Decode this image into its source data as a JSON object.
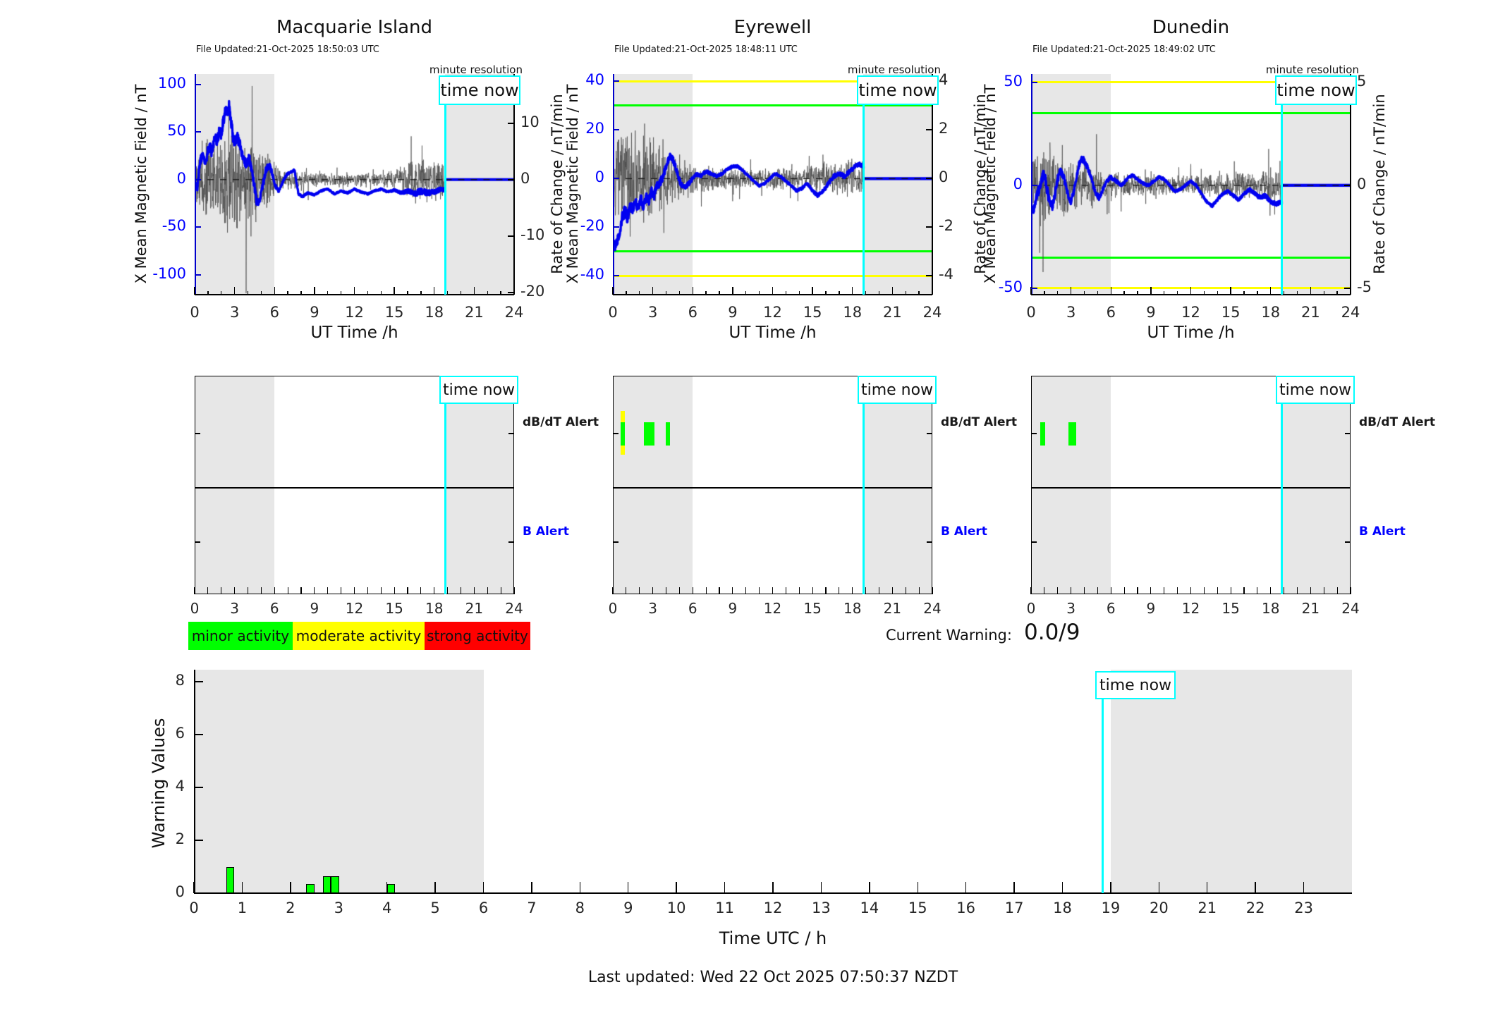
{
  "figure": {
    "time_now_label": "time now",
    "minute_resolution_label": "minute resolution",
    "current_warning_label": "Current Warning:",
    "current_warning_value": "0.0/9",
    "last_updated": "Last updated: Wed 22 Oct 2025 07:50:37 NZDT",
    "colors": {
      "field_line": "#0000F0",
      "noise_line": "#464646",
      "threshold_yellow": "#FFFF00",
      "threshold_green": "#00FF00",
      "time_now_cyan": "#00FFFF",
      "shading_gray": "#E7E7E7",
      "alert_green": "#00FF00",
      "alert_yellow": "#FFFF00",
      "axis_blue": "#0000FF"
    },
    "legend": [
      {
        "label": "minor activity",
        "color": "#00FF00"
      },
      {
        "label": "moderate activity",
        "color": "#FFFF00"
      },
      {
        "label": "strong activity",
        "color": "#FF0000"
      }
    ]
  },
  "chart_data": {
    "time_now_hours": 18.83,
    "stations": [
      {
        "title": "Macquarie Island",
        "file_updated": "File Updated:21-Oct-2025 18:50:03 UTC",
        "type": "line",
        "x_axis": {
          "label": "UT Time /h",
          "ticks": [
            0,
            3,
            6,
            9,
            12,
            15,
            18,
            21,
            24
          ],
          "range": [
            0,
            24
          ]
        },
        "left_axis": {
          "label": "X Mean Magnetic Field / nT",
          "ticks": [
            100,
            50,
            0,
            -50,
            -100
          ],
          "range": [
            -121,
            111
          ]
        },
        "right_axis": {
          "label": "Rate of Change / nT/min",
          "ticks": [
            10,
            0,
            -10,
            -20
          ],
          "range": [
            -20.4,
            18.75
          ]
        },
        "thresholds": {
          "yellow": [],
          "green": []
        },
        "shaded_hours": [
          [
            0,
            6
          ],
          [
            18.83,
            24
          ]
        ],
        "flat_after_now": 0,
        "field_line": {
          "x": [
            0,
            0.2,
            0.4,
            0.6,
            0.8,
            1.0,
            1.15,
            1.3,
            1.5,
            1.7,
            1.85,
            2.0,
            2.15,
            2.3,
            2.45,
            2.6,
            2.75,
            2.9,
            3.05,
            3.2,
            3.35,
            3.5,
            3.7,
            3.9,
            4.1,
            4.3,
            4.5,
            4.65,
            4.8,
            5.0,
            5.2,
            5.4,
            5.6,
            5.8,
            6.0,
            6.3,
            6.6,
            6.9,
            7.2,
            7.5,
            7.8,
            8.1,
            8.5,
            9.0,
            9.5,
            10.0,
            10.5,
            11.0,
            11.5,
            12.0,
            12.5,
            13.0,
            13.5,
            14.0,
            14.5,
            15.0,
            15.5,
            16.0,
            16.5,
            17.0,
            17.5,
            18.0,
            18.4,
            18.83
          ],
          "y": [
            -5,
            -10,
            20,
            25,
            18,
            30,
            35,
            28,
            45,
            40,
            52,
            48,
            60,
            75,
            70,
            78,
            60,
            42,
            38,
            44,
            40,
            30,
            20,
            15,
            22,
            10,
            -8,
            -22,
            -25,
            -15,
            0,
            12,
            15,
            8,
            -5,
            -12,
            -3,
            5,
            8,
            10,
            -15,
            -18,
            -14,
            -16,
            -12,
            -10,
            -15,
            -12,
            -14,
            -10,
            -13,
            -15,
            -12,
            -10,
            -13,
            -11,
            -14,
            -12,
            -15,
            -12,
            -14,
            -13,
            -11,
            -10
          ]
        },
        "noise_envelope": {
          "x": [
            0,
            0.5,
            1,
            1.5,
            2,
            2.5,
            3,
            3.5,
            4,
            4.5,
            5,
            5.5,
            6,
            6.5,
            7,
            8,
            9,
            11,
            13,
            15,
            15.5,
            16,
            16.5,
            17,
            17.5,
            18,
            18.83
          ],
          "amp": [
            6,
            8,
            9,
            8,
            10,
            12,
            11,
            9,
            9,
            8,
            7,
            6,
            3.5,
            2.5,
            2,
            1.8,
            1.5,
            1.5,
            1.5,
            1.8,
            2.5,
            4,
            5,
            5.5,
            5,
            4.5,
            4
          ]
        },
        "alerts": {
          "dbdt_label": "dB/dT Alert",
          "b_label": "B Alert",
          "bars": []
        }
      },
      {
        "title": "Eyrewell",
        "file_updated": "File Updated:21-Oct-2025 18:48:11 UTC",
        "type": "line",
        "x_axis": {
          "label": "UT Time /h",
          "ticks": [
            0,
            3,
            6,
            9,
            12,
            15,
            18,
            21,
            24
          ],
          "range": [
            0,
            24
          ]
        },
        "left_axis": {
          "label": "X Mean Magnetic Field / nT",
          "ticks": [
            40,
            20,
            0,
            -20,
            -40
          ],
          "range": [
            -47.7,
            43.0
          ]
        },
        "right_axis": {
          "label": "Rate of Change / nT/min",
          "ticks": [
            4,
            2,
            0,
            -2,
            -4
          ],
          "range": [
            -4.77,
            4.3
          ]
        },
        "thresholds": {
          "yellow": [
            40,
            -40
          ],
          "green": [
            30,
            -30
          ]
        },
        "shaded_hours": [
          [
            0,
            6
          ],
          [
            18.83,
            24
          ]
        ],
        "flat_after_now": 0,
        "field_line": {
          "x": [
            0,
            0.15,
            0.3,
            0.5,
            0.7,
            0.9,
            1.1,
            1.3,
            1.5,
            1.7,
            1.9,
            2.1,
            2.3,
            2.5,
            2.7,
            2.9,
            3.1,
            3.3,
            3.5,
            3.7,
            3.9,
            4.1,
            4.3,
            4.5,
            4.7,
            4.9,
            5.1,
            5.4,
            5.7,
            6.0,
            6.3,
            6.6,
            7.0,
            7.4,
            7.8,
            8.2,
            8.6,
            9.0,
            9.4,
            9.8,
            10.2,
            10.6,
            11.0,
            11.4,
            11.8,
            12.2,
            12.6,
            13.0,
            13.4,
            13.8,
            14.2,
            14.6,
            15.0,
            15.4,
            15.8,
            16.2,
            16.6,
            17.0,
            17.4,
            17.8,
            18.2,
            18.5,
            18.83
          ],
          "y": [
            -24,
            -28,
            -26,
            -22,
            -16,
            -13,
            -16,
            -11,
            -13,
            -9,
            -12,
            -8,
            -11,
            -7,
            -9,
            -5,
            -7,
            -3,
            -2,
            0,
            3,
            7,
            9,
            8,
            5,
            1,
            -2,
            -4,
            -2,
            0,
            2,
            1,
            3,
            2,
            1,
            2,
            4,
            5,
            5,
            3,
            1,
            -1,
            -3,
            -2,
            0,
            2,
            1,
            -1,
            -3,
            -5,
            -4,
            -2,
            -5,
            -7,
            -5,
            -2,
            1,
            2,
            1,
            3,
            5,
            6,
            5
          ]
        },
        "noise_envelope": {
          "x": [
            0,
            0.5,
            1,
            1.5,
            2,
            2.5,
            3,
            3.5,
            4,
            4.5,
            5,
            5.5,
            6,
            7,
            8,
            9,
            11,
            13,
            15,
            16,
            17,
            18,
            18.83
          ],
          "amp": [
            1.8,
            2.3,
            2.5,
            2.2,
            2.4,
            2.0,
            1.8,
            1.6,
            1.5,
            1.3,
            1.2,
            1.0,
            0.8,
            0.6,
            0.55,
            0.5,
            0.45,
            0.5,
            0.6,
            0.8,
            0.85,
            0.8,
            0.8
          ]
        },
        "alerts": {
          "dbdt_label": "dB/dT Alert",
          "b_label": "B Alert",
          "bars": [
            {
              "row": "dbdt",
              "start": 0.58,
              "end": 0.92,
              "color": "#FFFF00",
              "tall": true
            },
            {
              "row": "dbdt",
              "start": 0.58,
              "end": 0.92,
              "color": "#00FF00",
              "tall": false
            },
            {
              "row": "dbdt",
              "start": 2.35,
              "end": 3.15,
              "color": "#00FF00",
              "tall": false
            },
            {
              "row": "dbdt",
              "start": 3.95,
              "end": 4.3,
              "color": "#00FF00",
              "tall": false
            }
          ]
        }
      },
      {
        "title": "Dunedin",
        "file_updated": "File Updated:21-Oct-2025 18:49:02 UTC",
        "type": "line",
        "x_axis": {
          "label": "UT Time /h",
          "ticks": [
            0,
            3,
            6,
            9,
            12,
            15,
            18,
            21,
            24
          ],
          "range": [
            0,
            24
          ]
        },
        "left_axis": {
          "label": "X Mean Magnetic Field / nT",
          "ticks": [
            50,
            0,
            -50
          ],
          "range": [
            -53.1,
            54.1
          ]
        },
        "right_axis": {
          "label": "Rate of Change / nT/min",
          "ticks": [
            5,
            0,
            -5
          ],
          "range": [
            -5.31,
            5.41
          ]
        },
        "thresholds": {
          "yellow": [
            50,
            -50
          ],
          "green": [
            35,
            -35
          ]
        },
        "shaded_hours": [
          [
            0,
            6
          ],
          [
            18.83,
            24
          ]
        ],
        "flat_after_now": 0,
        "field_line": {
          "x": [
            0,
            0.2,
            0.4,
            0.6,
            0.8,
            1.0,
            1.2,
            1.4,
            1.6,
            1.8,
            2.0,
            2.2,
            2.4,
            2.6,
            2.8,
            3.0,
            3.2,
            3.4,
            3.6,
            3.8,
            4.0,
            4.2,
            4.5,
            4.8,
            5.1,
            5.4,
            5.7,
            6.0,
            6.4,
            6.8,
            7.2,
            7.6,
            8.0,
            8.4,
            8.8,
            9.2,
            9.6,
            10.0,
            10.4,
            10.8,
            11.2,
            11.6,
            12.0,
            12.4,
            12.8,
            13.2,
            13.6,
            14.0,
            14.4,
            14.8,
            15.2,
            15.6,
            16.0,
            16.4,
            16.8,
            17.2,
            17.6,
            18.0,
            18.4,
            18.83
          ],
          "y": [
            -10,
            -12,
            -6,
            -2,
            3,
            6,
            -2,
            -8,
            -10,
            -4,
            3,
            7,
            5,
            0,
            -5,
            -8,
            -3,
            4,
            10,
            13,
            12,
            9,
            4,
            -3,
            -6,
            -2,
            2,
            4,
            2,
            0,
            3,
            5,
            3,
            1,
            0,
            2,
            4,
            3,
            0,
            -3,
            -2,
            0,
            2,
            0,
            -4,
            -8,
            -10,
            -7,
            -4,
            -3,
            -5,
            -7,
            -4,
            -2,
            -4,
            -6,
            -5,
            -8,
            -9,
            -8
          ]
        },
        "noise_envelope": {
          "x": [
            0,
            0.5,
            1,
            1.5,
            2,
            2.5,
            3,
            3.5,
            4,
            4.5,
            5,
            5.5,
            6,
            7,
            8,
            9,
            11,
            13,
            15,
            16,
            17,
            18,
            18.83
          ],
          "amp": [
            1.4,
            2.2,
            2.6,
            2.0,
            1.8,
            1.7,
            1.5,
            1.4,
            1.5,
            1.3,
            1.2,
            1.0,
            0.9,
            0.7,
            0.65,
            0.6,
            0.55,
            0.6,
            0.7,
            0.8,
            0.9,
            1.0,
            0.95
          ]
        },
        "alerts": {
          "dbdt_label": "dB/dT Alert",
          "b_label": "B Alert",
          "bars": [
            {
              "row": "dbdt",
              "start": 0.7,
              "end": 1.05,
              "color": "#00FF00",
              "tall": false
            },
            {
              "row": "dbdt",
              "start": 2.8,
              "end": 3.4,
              "color": "#00FF00",
              "tall": false
            }
          ]
        }
      }
    ],
    "warning_chart": {
      "type": "bar",
      "ylabel": "Warning Values",
      "xlabel": "Time UTC / h",
      "y_ticks": [
        0,
        2,
        4,
        6,
        8
      ],
      "ylim": [
        0,
        8.45
      ],
      "x_ticks": [
        0,
        1,
        2,
        3,
        4,
        5,
        6,
        7,
        8,
        9,
        10,
        11,
        12,
        13,
        14,
        15,
        16,
        17,
        18,
        19,
        20,
        21,
        22,
        23
      ],
      "x_range": [
        0,
        24
      ],
      "shaded_hours": [
        [
          0,
          6
        ],
        [
          19,
          24
        ]
      ],
      "bar_color": "#00FF00",
      "bars": [
        {
          "x": 0.67,
          "width": 0.17,
          "height": 1.0
        },
        {
          "x": 2.33,
          "width": 0.17,
          "height": 0.35
        },
        {
          "x": 2.67,
          "width": 0.17,
          "height": 0.65
        },
        {
          "x": 2.84,
          "width": 0.17,
          "height": 0.65
        },
        {
          "x": 4.0,
          "width": 0.17,
          "height": 0.35
        }
      ]
    }
  }
}
